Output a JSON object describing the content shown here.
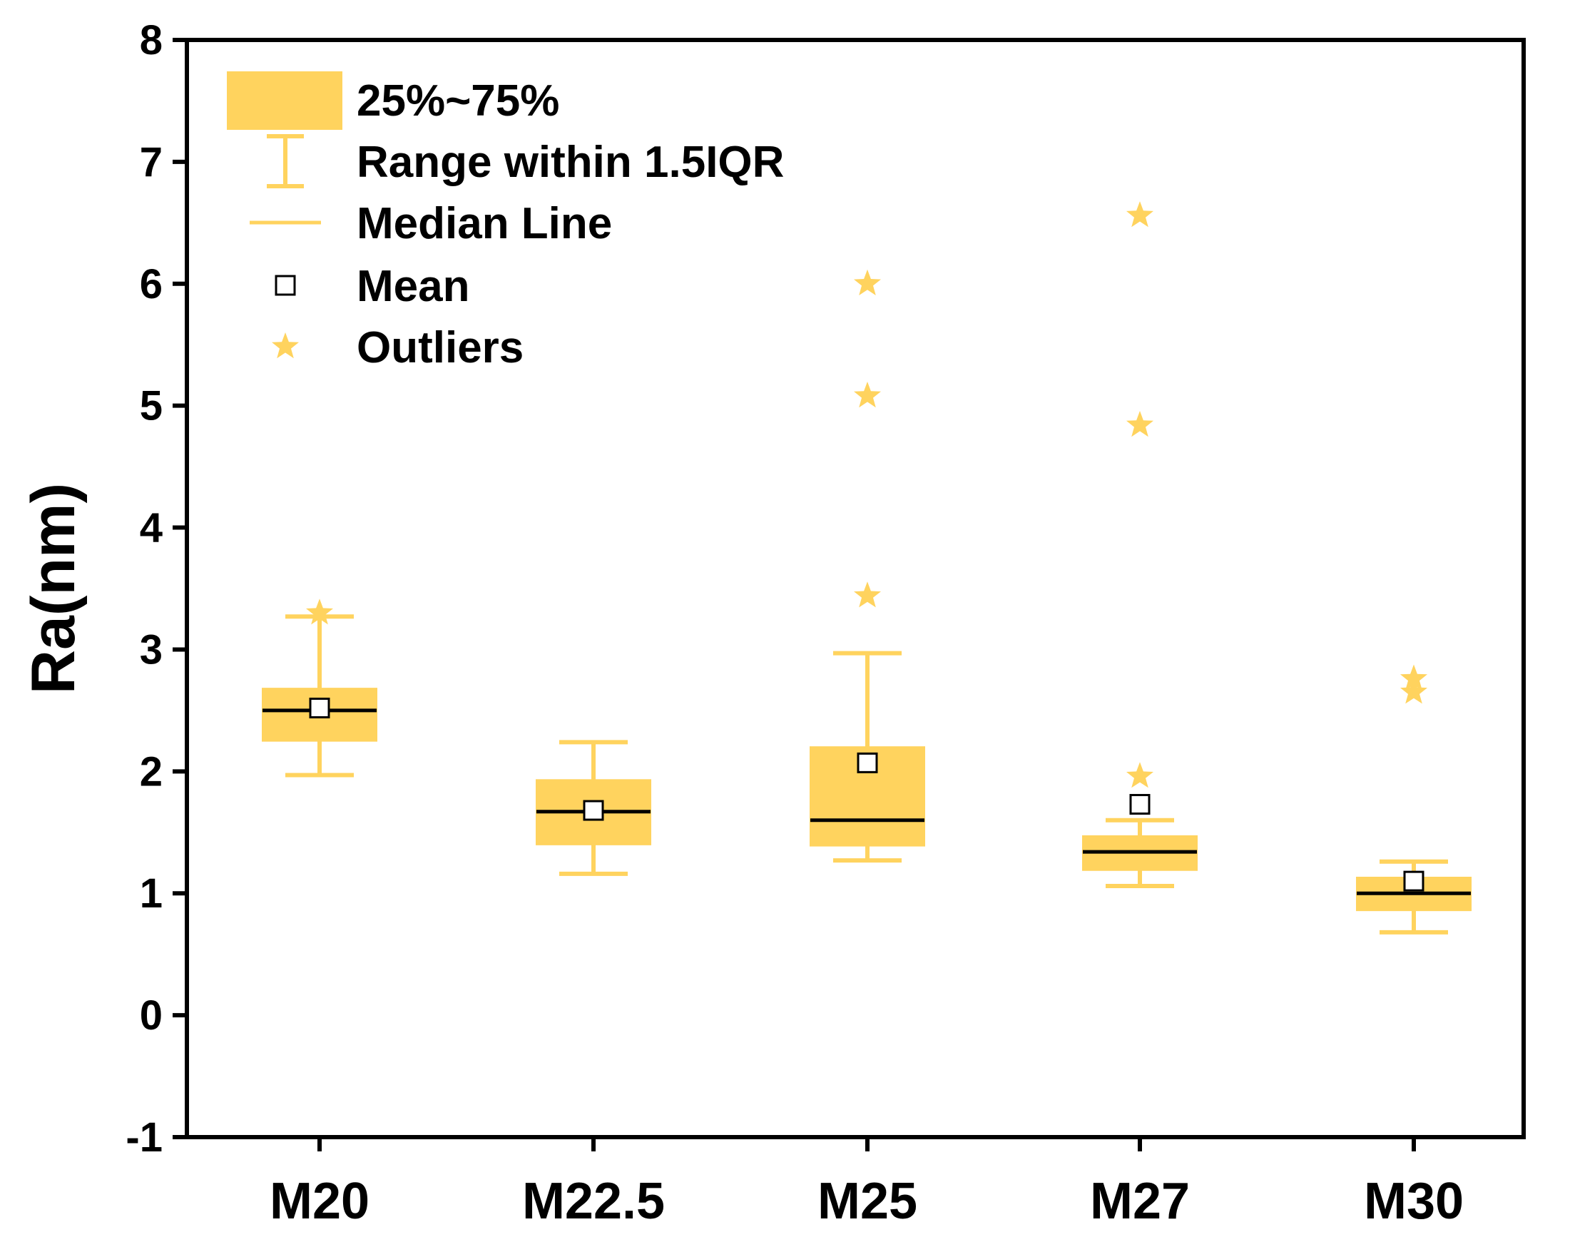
{
  "colors": {
    "box": "#FFD35E",
    "whisker": "#FFD35E",
    "median": "#000000",
    "mean_marker": "#000000",
    "outlier": "#FFD35E",
    "axis": "#000000"
  },
  "chart_data": {
    "type": "box",
    "title": "",
    "xlabel": "",
    "ylabel": "Ra(nm)",
    "ylim": [
      -1,
      8
    ],
    "yticks": [
      -1,
      0,
      1,
      2,
      3,
      4,
      5,
      6,
      7,
      8
    ],
    "ytick_labels": [
      "-1",
      "0",
      "1",
      "2",
      "3",
      "4",
      "5",
      "6",
      "7",
      "8"
    ],
    "categories": [
      "M20",
      "M22.5",
      "M25",
      "M27",
      "M30"
    ],
    "series": [
      {
        "name": "M20",
        "q1": 2.25,
        "median": 2.5,
        "q3": 2.68,
        "whisker_low": 1.97,
        "whisker_high": 3.27,
        "mean": 2.52,
        "outliers": [
          3.3
        ]
      },
      {
        "name": "M22.5",
        "q1": 1.4,
        "median": 1.67,
        "q3": 1.93,
        "whisker_low": 1.16,
        "whisker_high": 2.24,
        "mean": 1.68,
        "outliers": []
      },
      {
        "name": "M25",
        "q1": 1.39,
        "median": 1.6,
        "q3": 2.2,
        "whisker_low": 1.27,
        "whisker_high": 2.97,
        "mean": 2.07,
        "outliers": [
          3.44,
          5.08,
          6.0
        ]
      },
      {
        "name": "M27",
        "q1": 1.19,
        "median": 1.34,
        "q3": 1.47,
        "whisker_low": 1.06,
        "whisker_high": 1.6,
        "mean": 1.73,
        "outliers": [
          1.96,
          4.84,
          6.56
        ]
      },
      {
        "name": "M30",
        "q1": 0.86,
        "median": 1.0,
        "q3": 1.13,
        "whisker_low": 0.68,
        "whisker_high": 1.26,
        "mean": 1.1,
        "outliers": [
          2.65,
          2.76
        ]
      }
    ],
    "legend": {
      "position": "top-left",
      "entries": [
        {
          "key": "box",
          "label": "25%~75%"
        },
        {
          "key": "whisker",
          "label": "Range within 1.5IQR"
        },
        {
          "key": "median",
          "label": "Median Line"
        },
        {
          "key": "mean",
          "label": "Mean"
        },
        {
          "key": "outlier",
          "label": "Outliers"
        }
      ]
    }
  }
}
